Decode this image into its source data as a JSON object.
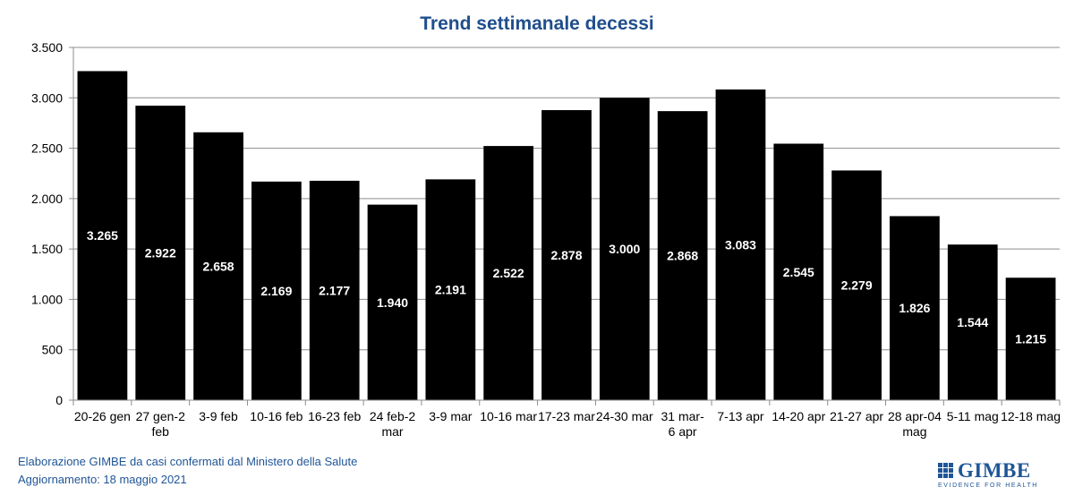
{
  "chart_data": {
    "type": "bar",
    "title": "Trend settimanale decessi",
    "categories": [
      [
        "20-26 gen"
      ],
      [
        "27 gen-2",
        "feb"
      ],
      [
        "3-9 feb"
      ],
      [
        "10-16 feb"
      ],
      [
        "16-23 feb"
      ],
      [
        "24 feb-2",
        "mar"
      ],
      [
        "3-9 mar"
      ],
      [
        "10-16 mar"
      ],
      [
        "17-23 mar"
      ],
      [
        "24-30 mar"
      ],
      [
        "31 mar-",
        "6 apr"
      ],
      [
        "7-13 apr"
      ],
      [
        "14-20 apr"
      ],
      [
        "21-27 apr"
      ],
      [
        "28 apr-04",
        "mag"
      ],
      [
        "5-11 mag"
      ],
      [
        "12-18 mag"
      ]
    ],
    "values": [
      3265,
      2922,
      2658,
      2169,
      2177,
      1940,
      2191,
      2522,
      2878,
      3000,
      2868,
      3083,
      2545,
      2279,
      1826,
      1544,
      1215
    ],
    "ylim": [
      0,
      3500
    ],
    "yticks": [
      0,
      500,
      1000,
      1500,
      2000,
      2500,
      3000,
      3500
    ],
    "ytick_labels": [
      "0",
      "500",
      "1.000",
      "1.500",
      "2.000",
      "2.500",
      "3.000",
      "3.500"
    ],
    "grid": true,
    "legend": "none",
    "bar_color": "#000000",
    "title_color": "#1f4e8c"
  },
  "footer": {
    "source": "Elaborazione GIMBE da casi confermati dal Ministero della Salute",
    "updated": "Aggiornamento: 18 maggio 2021"
  },
  "logo": {
    "name": "GIMBE",
    "tagline": "EVIDENCE FOR HEALTH"
  }
}
